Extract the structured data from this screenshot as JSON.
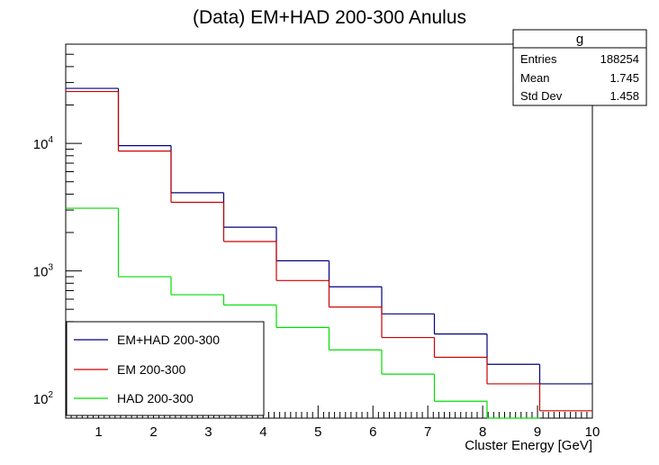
{
  "chart_data": {
    "type": "histogram-step",
    "title": "(Data) EM+HAD 200-300 Anulus",
    "xlabel": "Cluster Energy [GeV]",
    "ylabel": "",
    "yscale": "log",
    "xlim": [
      0.4,
      10.0
    ],
    "ylim": [
      70,
      60000
    ],
    "x_ticks": [
      "1",
      "2",
      "3",
      "4",
      "5",
      "6",
      "7",
      "8",
      "9",
      "10"
    ],
    "y_ticks": [
      {
        "value": 100,
        "base": "10",
        "exp": "2"
      },
      {
        "value": 1000,
        "base": "10",
        "exp": "3"
      },
      {
        "value": 10000,
        "base": "10",
        "exp": "4"
      }
    ],
    "bin_edges": [
      0.4,
      1.36,
      2.32,
      3.28,
      4.24,
      5.2,
      6.16,
      7.12,
      8.08,
      9.04,
      10.0
    ],
    "series": [
      {
        "name": "EM+HAD 200-300",
        "color": "#000080",
        "values": [
          27000,
          9600,
          4100,
          2200,
          1200,
          750,
          460,
          320,
          185,
          130
        ]
      },
      {
        "name": "EM 200-300",
        "color": "#cc0000",
        "values": [
          25500,
          8700,
          3450,
          1700,
          840,
          520,
          300,
          210,
          130,
          80
        ]
      },
      {
        "name": "HAD 200-300",
        "color": "#00dd00",
        "values": [
          3100,
          900,
          650,
          540,
          360,
          240,
          155,
          95,
          65,
          0
        ]
      }
    ],
    "legend_position": "bottom-left",
    "stats": {
      "title": "g",
      "rows": [
        {
          "label": "Entries",
          "value": "188254"
        },
        {
          "label": "Mean",
          "value": "1.745"
        },
        {
          "label": "Std Dev",
          "value": "1.458"
        }
      ]
    }
  }
}
